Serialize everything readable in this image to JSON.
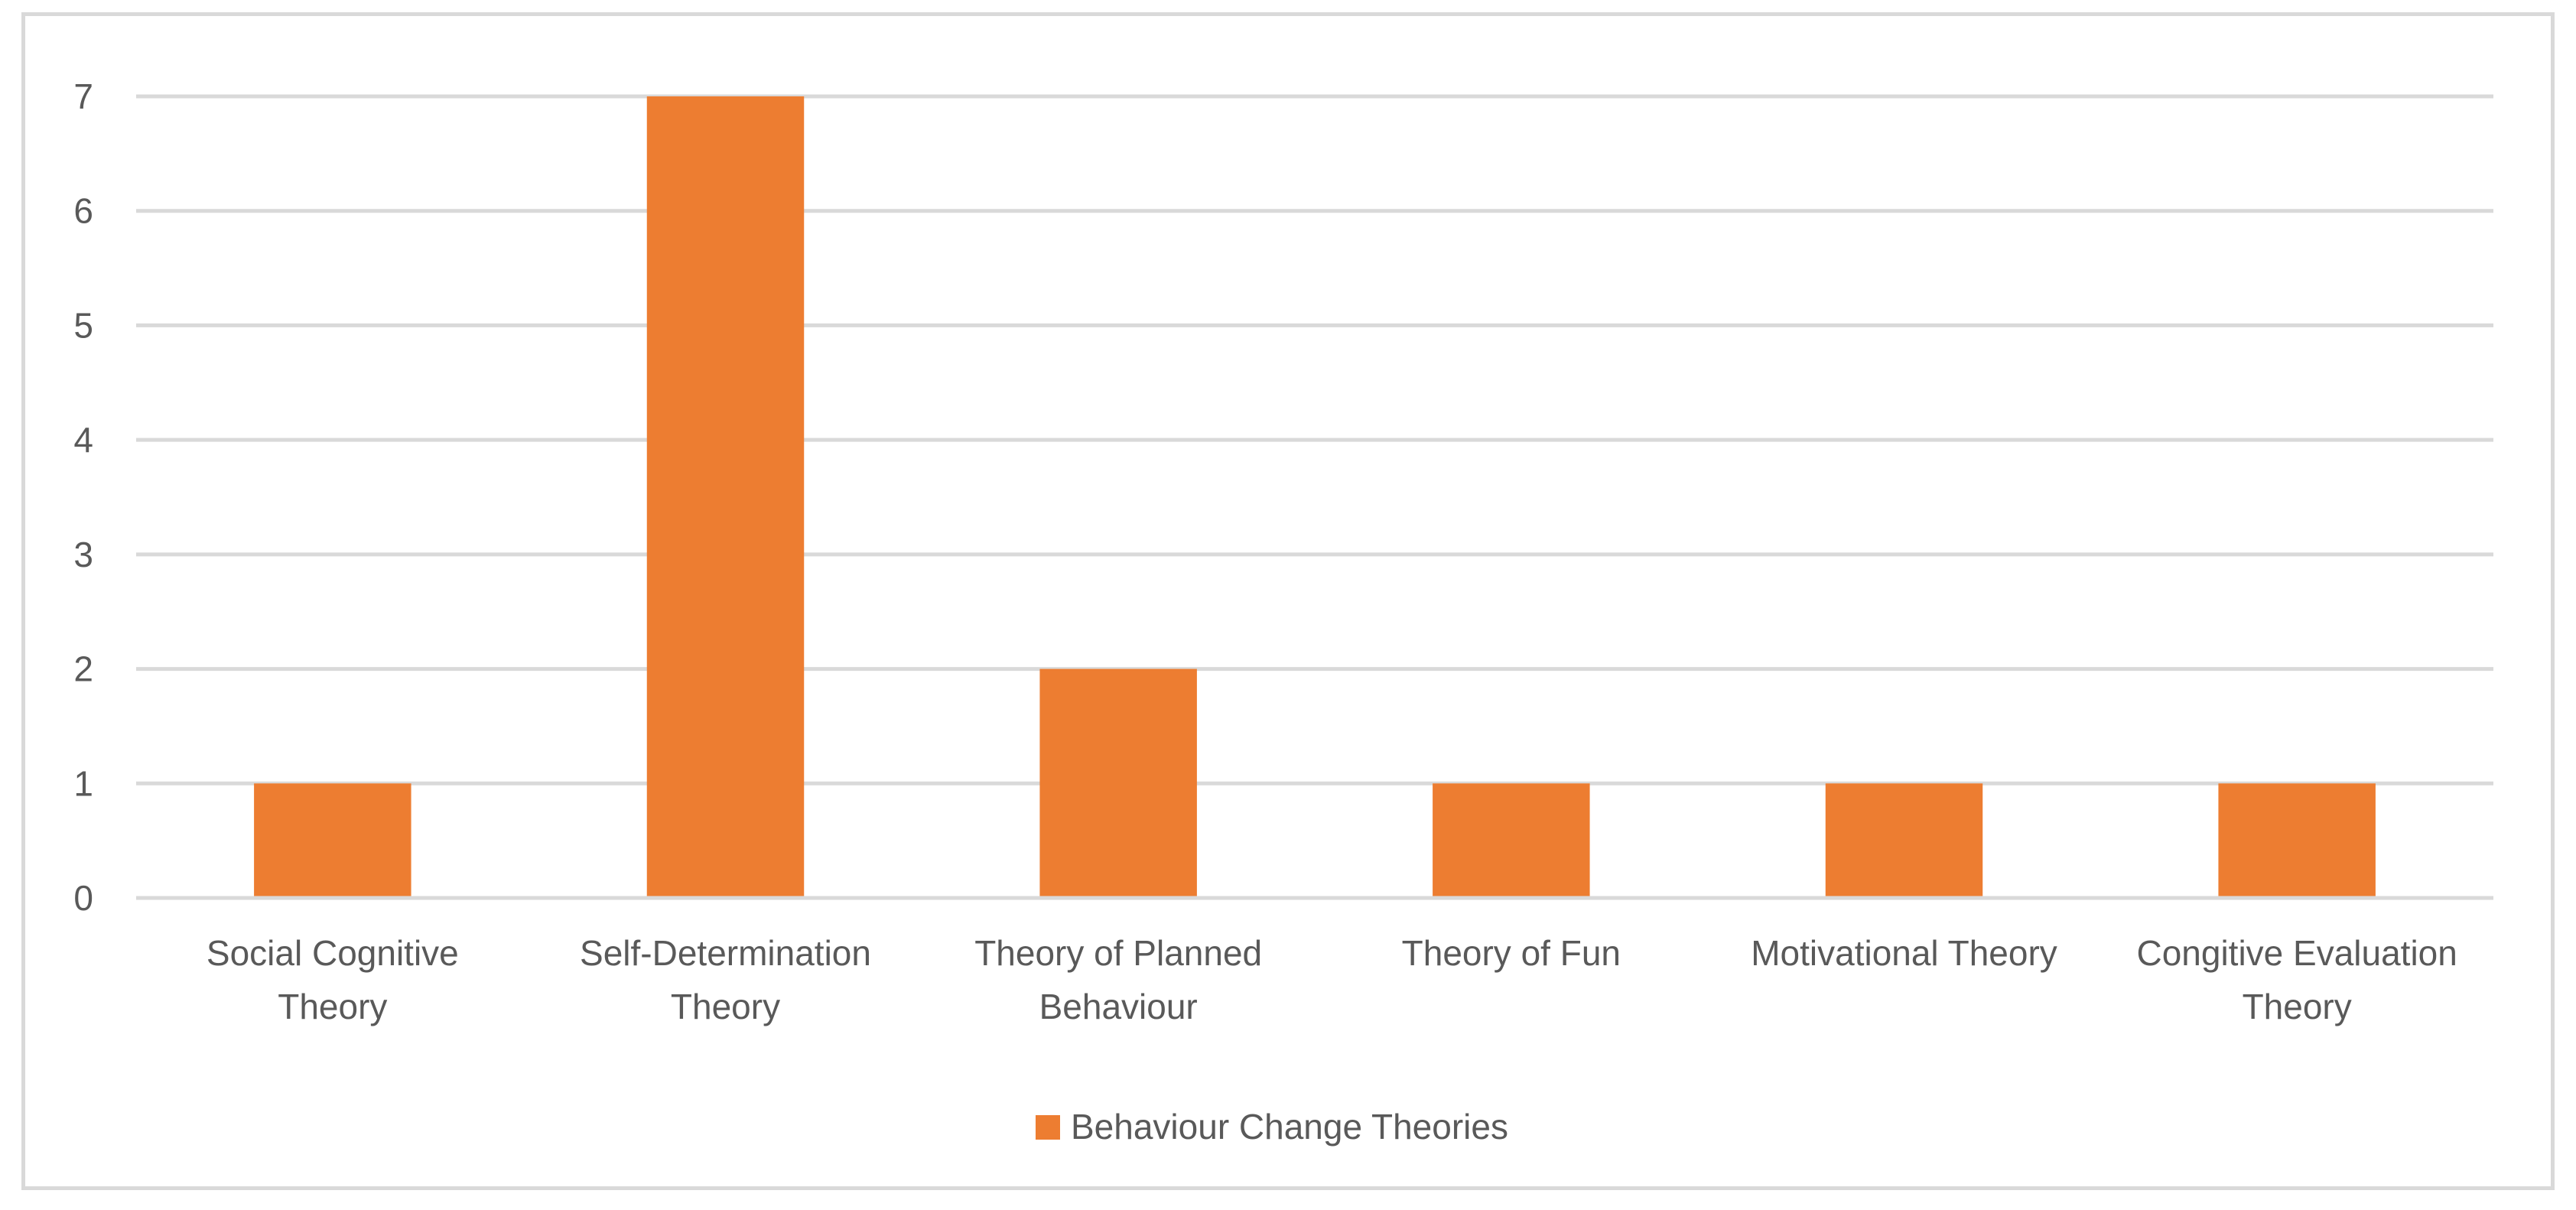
{
  "chart_data": {
    "type": "bar",
    "categories": [
      [
        "Social Cognitive",
        "Theory"
      ],
      [
        "Self-Determination",
        "Theory"
      ],
      [
        "Theory of Planned",
        "Behaviour"
      ],
      [
        "Theory of Fun"
      ],
      [
        "Motivational Theory"
      ],
      [
        "Congitive Evaluation",
        "Theory"
      ]
    ],
    "series": [
      {
        "name": "Behaviour Change Theories",
        "values": [
          1,
          7,
          2,
          1,
          1,
          1
        ],
        "color": "#ed7d31"
      }
    ],
    "ylim": [
      0,
      7
    ],
    "yticks": [
      0,
      1,
      2,
      3,
      4,
      5,
      6,
      7
    ],
    "grid": true,
    "gridColor": "#d9d9d9",
    "legend_position": "bottom"
  }
}
